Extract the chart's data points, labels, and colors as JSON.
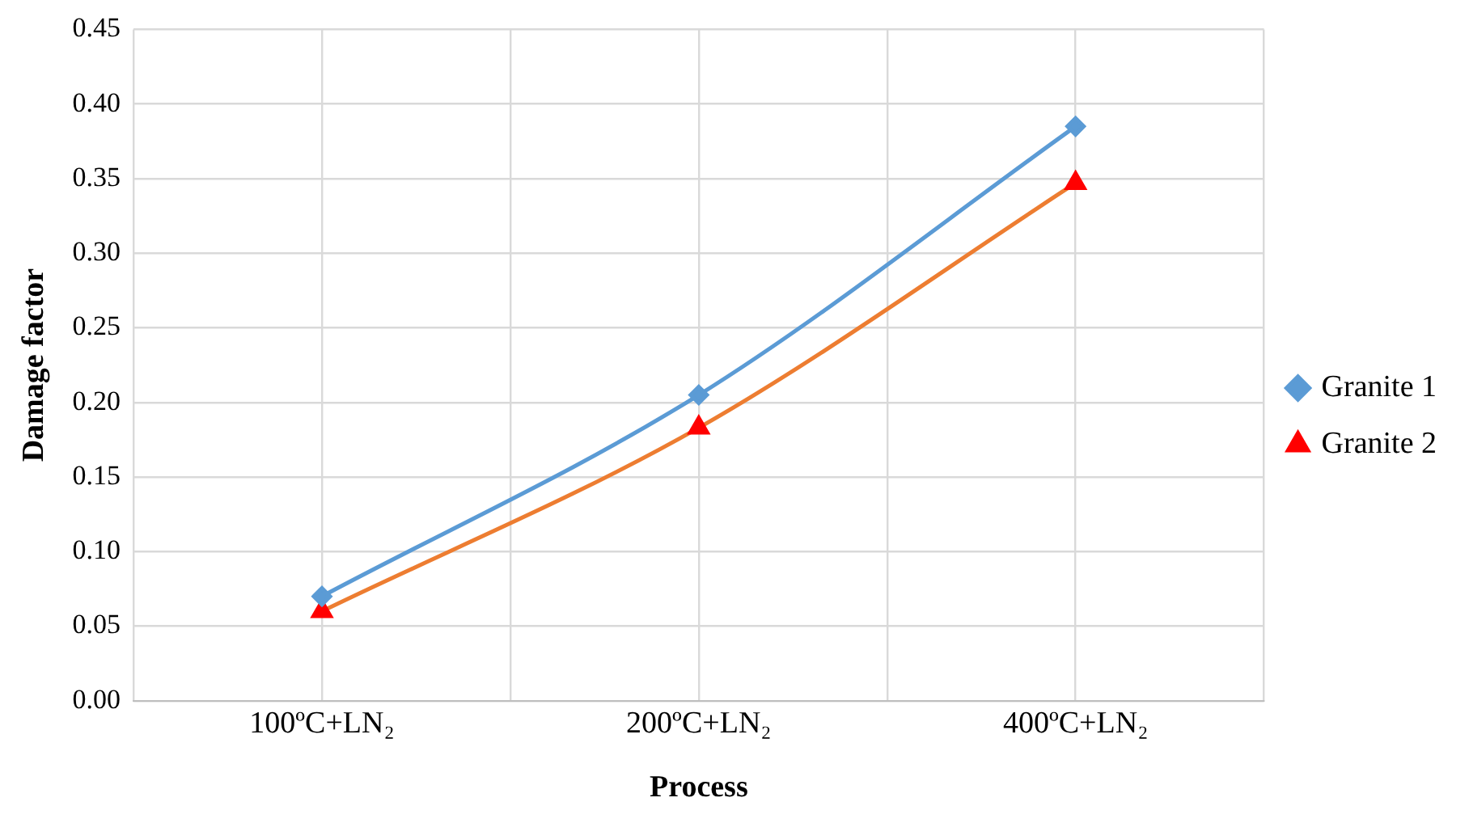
{
  "chart_data": {
    "type": "line",
    "xlabel": "Process",
    "ylabel": "Damage factor",
    "categories": [
      "100ºC+LN₂",
      "200ºC+LN₂",
      "400ºC+LN₂"
    ],
    "series": [
      {
        "name": "Granite 1",
        "color": "#5b9bd5",
        "marker": "diamond",
        "values": [
          0.07,
          0.205,
          0.385
        ]
      },
      {
        "name": "Granite 2",
        "color": "#ed7d31",
        "marker": "triangle",
        "colors": [
          "#ff0000",
          "#ff0000",
          "#ff0000"
        ],
        "values": [
          0.06,
          0.183,
          0.347
        ]
      }
    ],
    "ylim": [
      0,
      0.45
    ],
    "yticks": [
      {
        "value": 0,
        "label": "0.00"
      },
      {
        "value": 0.05,
        "label": "0.05"
      },
      {
        "value": 0.1,
        "label": "0.10"
      },
      {
        "value": 0.15,
        "label": "0.15"
      },
      {
        "value": 0.2,
        "label": "0.20"
      },
      {
        "value": 0.25,
        "label": "0.25"
      },
      {
        "value": 0.3,
        "label": "0.30"
      },
      {
        "value": 0.35,
        "label": "0.35"
      },
      {
        "value": 0.4,
        "label": "0.40"
      },
      {
        "value": 0.45,
        "label": "0.45"
      }
    ],
    "grid": true,
    "legend": "right",
    "line_style": "solid"
  }
}
